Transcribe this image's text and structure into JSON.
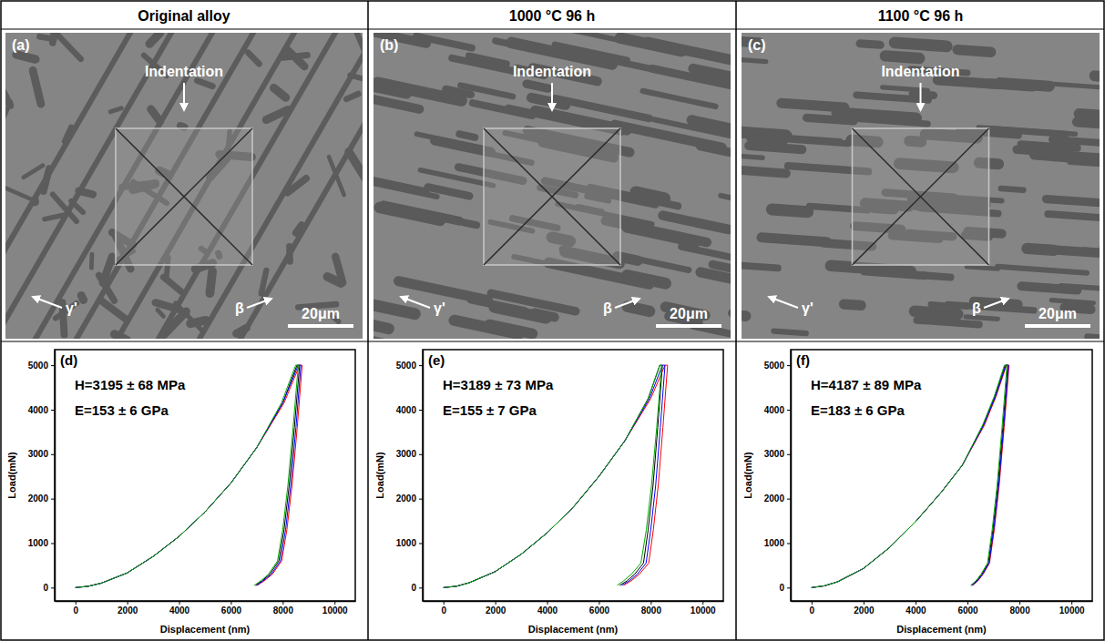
{
  "panels": [
    {
      "title": "Original alloy",
      "image_label": "(a)",
      "annotations": [
        "Indentation",
        "γ'",
        "β"
      ],
      "scale_bar": "20μm"
    },
    {
      "title": "1000 °C 96 h",
      "image_label": "(b)",
      "annotations": [
        "Indentation",
        "γ'",
        "β"
      ],
      "scale_bar": "20μm"
    },
    {
      "title": "1100 °C 96 h",
      "image_label": "(c)",
      "annotations": [
        "Indentation",
        "γ'",
        "β"
      ],
      "scale_bar": "20μm"
    }
  ],
  "chart_data": [
    {
      "type": "line",
      "panel_label": "(d)",
      "annotations": [
        "H=3195 ± 68 MPa",
        "E=153 ± 6 GPa"
      ],
      "x_label": "Displacement (nm)",
      "y_label": "Load(mN)",
      "xlim": [
        -800,
        10800
      ],
      "ylim": [
        -300,
        5350
      ],
      "xticks": [
        0,
        2000,
        4000,
        6000,
        8000,
        10000
      ],
      "yticks": [
        0,
        1000,
        2000,
        3000,
        4000,
        5000
      ],
      "grid": false,
      "series": [
        {
          "color": "#000000",
          "x": [
            0,
            500,
            1000,
            2000,
            3000,
            4000,
            5000,
            6000,
            7000,
            8000,
            8550,
            8650,
            8450,
            8250,
            8050,
            7850,
            7500,
            7200,
            6950
          ],
          "values": [
            0,
            30,
            100,
            330,
            700,
            1150,
            1700,
            2350,
            3150,
            4150,
            5000,
            5000,
            3600,
            2300,
            1300,
            600,
            300,
            150,
            50
          ]
        },
        {
          "color": "#ff0000",
          "x": [
            0,
            500,
            1000,
            2000,
            3000,
            4000,
            5000,
            6000,
            7000,
            8050,
            8650,
            8750,
            8560,
            8360,
            8160,
            7960,
            7600,
            7280,
            7020
          ],
          "values": [
            0,
            30,
            100,
            330,
            700,
            1150,
            1700,
            2350,
            3150,
            4150,
            5000,
            5000,
            3600,
            2300,
            1300,
            600,
            300,
            150,
            50
          ]
        },
        {
          "color": "#0000ff",
          "x": [
            0,
            500,
            1000,
            2000,
            3000,
            4000,
            5000,
            6000,
            7000,
            8000,
            8600,
            8700,
            8510,
            8310,
            8110,
            7910,
            7560,
            7240,
            6980
          ],
          "values": [
            0,
            30,
            100,
            330,
            700,
            1150,
            1700,
            2350,
            3150,
            4150,
            5000,
            5000,
            3600,
            2300,
            1300,
            600,
            300,
            150,
            50
          ]
        },
        {
          "color": "#00aa00",
          "x": [
            0,
            500,
            1000,
            2000,
            3000,
            4000,
            5000,
            6000,
            7000,
            7950,
            8500,
            8600,
            8400,
            8200,
            8000,
            7800,
            7450,
            7150,
            6900
          ],
          "values": [
            0,
            30,
            100,
            330,
            700,
            1150,
            1700,
            2350,
            3150,
            4150,
            5000,
            5000,
            3600,
            2300,
            1300,
            600,
            300,
            150,
            50
          ]
        }
      ]
    },
    {
      "type": "line",
      "panel_label": "(e)",
      "annotations": [
        "H=3189 ± 73 MPa",
        "E=155 ± 7 GPa"
      ],
      "x_label": "Displacement (nm)",
      "y_label": "Load(mN)",
      "xlim": [
        -800,
        10800
      ],
      "ylim": [
        -300,
        5350
      ],
      "xticks": [
        0,
        2000,
        4000,
        6000,
        8000,
        10000
      ],
      "yticks": [
        0,
        1000,
        2000,
        3000,
        4000,
        5000
      ],
      "grid": false,
      "series": [
        {
          "color": "#000000",
          "x": [
            0,
            500,
            1000,
            2000,
            3000,
            4000,
            5000,
            6000,
            7000,
            7900,
            8350,
            8450,
            8270,
            8090,
            7900,
            7720,
            7380,
            7080,
            6800
          ],
          "values": [
            0,
            30,
            110,
            360,
            750,
            1230,
            1800,
            2500,
            3300,
            4250,
            5000,
            5000,
            3600,
            2300,
            1300,
            550,
            300,
            150,
            50
          ]
        },
        {
          "color": "#ff0000",
          "x": [
            0,
            500,
            1000,
            2000,
            3000,
            4000,
            5000,
            6000,
            7000,
            8000,
            8550,
            8650,
            8470,
            8290,
            8100,
            7920,
            7560,
            7240,
            6950
          ],
          "values": [
            0,
            30,
            110,
            360,
            750,
            1230,
            1800,
            2500,
            3300,
            4250,
            5000,
            5000,
            3600,
            2300,
            1300,
            550,
            300,
            150,
            50
          ]
        },
        {
          "color": "#0000ff",
          "x": [
            0,
            500,
            1000,
            2000,
            3000,
            4000,
            5000,
            6000,
            7000,
            7950,
            8450,
            8550,
            8370,
            8190,
            8000,
            7820,
            7480,
            7170,
            6880
          ],
          "values": [
            0,
            30,
            110,
            360,
            750,
            1230,
            1800,
            2500,
            3300,
            4250,
            5000,
            5000,
            3600,
            2300,
            1300,
            550,
            300,
            150,
            50
          ]
        },
        {
          "color": "#00aa00",
          "x": [
            0,
            500,
            1000,
            2000,
            3000,
            4000,
            5000,
            6000,
            7000,
            7900,
            8350,
            8420,
            8230,
            8030,
            7830,
            7620,
            7250,
            6950,
            6700
          ],
          "values": [
            0,
            30,
            110,
            360,
            750,
            1230,
            1800,
            2500,
            3300,
            4250,
            5000,
            5000,
            3600,
            2300,
            1300,
            550,
            300,
            150,
            50
          ]
        }
      ]
    },
    {
      "type": "line",
      "panel_label": "(f)",
      "annotations": [
        "H=4187 ± 89 MPa",
        "E=183 ± 6 GPa"
      ],
      "x_label": "Displacement (nm)",
      "y_label": "Load(mN)",
      "xlim": [
        -800,
        10800
      ],
      "ylim": [
        -300,
        5350
      ],
      "xticks": [
        0,
        2000,
        4000,
        6000,
        8000,
        10000
      ],
      "yticks": [
        0,
        1000,
        2000,
        3000,
        4000,
        5000
      ],
      "grid": false,
      "series": [
        {
          "color": "#000000",
          "x": [
            0,
            500,
            1000,
            2000,
            3000,
            4000,
            5000,
            5800,
            6600,
            7050,
            7450,
            7550,
            7360,
            7170,
            6980,
            6800,
            6550,
            6350,
            6150
          ],
          "values": [
            0,
            40,
            130,
            430,
            900,
            1480,
            2150,
            2750,
            3650,
            4300,
            5000,
            5000,
            3600,
            2300,
            1300,
            550,
            300,
            150,
            50
          ]
        },
        {
          "color": "#ff0000",
          "x": [
            0,
            500,
            1000,
            2000,
            3000,
            4000,
            5000,
            5800,
            6650,
            7100,
            7500,
            7600,
            7410,
            7220,
            7030,
            6850,
            6600,
            6400,
            6200
          ],
          "values": [
            0,
            40,
            130,
            430,
            900,
            1480,
            2150,
            2750,
            3650,
            4300,
            5000,
            5000,
            3600,
            2300,
            1300,
            550,
            300,
            150,
            50
          ]
        },
        {
          "color": "#0000ff",
          "x": [
            0,
            500,
            1000,
            2000,
            3000,
            4000,
            5000,
            5800,
            6620,
            7080,
            7480,
            7580,
            7390,
            7200,
            7010,
            6830,
            6580,
            6380,
            6180
          ],
          "values": [
            0,
            40,
            130,
            430,
            900,
            1480,
            2150,
            2750,
            3650,
            4300,
            5000,
            5000,
            3600,
            2300,
            1300,
            550,
            300,
            150,
            50
          ]
        },
        {
          "color": "#00aa00",
          "x": [
            0,
            500,
            1000,
            2000,
            3000,
            4000,
            5000,
            5800,
            6580,
            7030,
            7420,
            7520,
            7330,
            7140,
            6950,
            6770,
            6520,
            6320,
            6120
          ],
          "values": [
            0,
            40,
            130,
            430,
            900,
            1480,
            2150,
            2750,
            3650,
            4300,
            5000,
            5000,
            3600,
            2300,
            1300,
            550,
            300,
            150,
            50
          ]
        }
      ]
    }
  ]
}
